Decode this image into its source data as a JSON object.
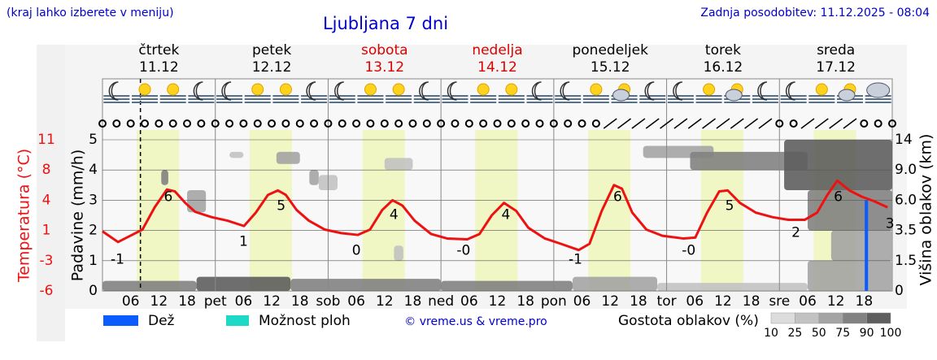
{
  "header": {
    "note": "(kraj lahko izberete v meniju)",
    "title": "Ljubljana 7 dni",
    "updated": "Zadnja posodobitev: 11.12.2025 - 08:04"
  },
  "chart_data": {
    "type": "meteogram",
    "days": [
      {
        "name": "čtrtek",
        "date": "11.12",
        "color": "#000000"
      },
      {
        "name": "petek",
        "date": "12.12",
        "color": "#000000"
      },
      {
        "name": "sobota",
        "date": "13.12",
        "color": "#dd0000"
      },
      {
        "name": "nedelja",
        "date": "14.12",
        "color": "#dd0000"
      },
      {
        "name": "ponedeljek",
        "date": "15.12",
        "color": "#000000"
      },
      {
        "name": "torek",
        "date": "16.12",
        "color": "#000000"
      },
      {
        "name": "sreda",
        "date": "17.12",
        "color": "#000000"
      }
    ],
    "xlim": [
      0,
      168
    ],
    "xticks": [
      {
        "value": 6,
        "label": "06"
      },
      12,
      18,
      {
        "value": 24,
        "label": "pet"
      },
      {
        "value": 30,
        "label": "06"
      },
      {
        "value": 36,
        "label": "12"
      },
      {
        "value": 42,
        "label": "18"
      },
      {
        "value": 48,
        "label": "sob"
      },
      {
        "value": 54,
        "label": "06"
      },
      {
        "value": 60,
        "label": "12"
      },
      {
        "value": 66,
        "label": "18"
      },
      {
        "value": 72,
        "label": "ned"
      },
      {
        "value": 78,
        "label": "06"
      },
      {
        "value": 84,
        "label": "12"
      },
      {
        "value": 90,
        "label": "18"
      },
      {
        "value": 96,
        "label": "pon"
      },
      {
        "value": 102,
        "label": "06"
      },
      {
        "value": 108,
        "label": "12"
      },
      {
        "value": 114,
        "label": "18"
      },
      {
        "value": 120,
        "label": "tor"
      },
      {
        "value": 126,
        "label": "06"
      },
      {
        "value": 132,
        "label": "12"
      },
      {
        "value": 138,
        "label": "18"
      },
      {
        "value": 144,
        "label": "sre"
      },
      {
        "value": 150,
        "label": "06"
      },
      {
        "value": 156,
        "label": "12"
      },
      {
        "value": 162,
        "label": "18"
      }
    ],
    "now": 8.07,
    "daylight": [
      [
        7.3,
        16.3
      ],
      [
        31.3,
        40.3
      ],
      [
        55.3,
        64.3
      ],
      [
        79.3,
        88.3
      ],
      [
        103.3,
        112.3
      ],
      [
        127.3,
        136.3
      ],
      [
        151.3,
        160.3
      ]
    ],
    "ylabel": "Padavine (mm/h)",
    "ylim": [
      0,
      5
    ],
    "yticks": [
      0,
      1,
      2,
      3,
      4,
      5
    ],
    "temperature": {
      "label": "Temperatura (°C)",
      "color": "#ee1111",
      "lim": [
        -6,
        11
      ],
      "ticks": [
        -6,
        {
          "value": -2.6,
          "label": "-3"
        },
        {
          "value": 0.8,
          "label": "1"
        },
        {
          "value": 4.2,
          "label": "4"
        },
        {
          "value": 7.6,
          "label": "8"
        },
        11
      ],
      "x": [
        0,
        3.3,
        5.9,
        8.5,
        11.1,
        13.7,
        15.4,
        17.6,
        19.7,
        23.2,
        26.6,
        30.1,
        32.6,
        35.2,
        37.3,
        39.0,
        41.3,
        43.9,
        47.3,
        50.8,
        54.3,
        56.9,
        59.5,
        61.7,
        63.8,
        66.4,
        69.9,
        73.3,
        77.6,
        80.2,
        82.8,
        85.4,
        88.0,
        90.6,
        94.1,
        97.5,
        101.3,
        103.6,
        106.2,
        108.8,
        110.5,
        112.7,
        115.7,
        119.1,
        123.5,
        126.1,
        128.6,
        131.2,
        133.0,
        135.6,
        139.0,
        142.5,
        145.9,
        149.4,
        152.0,
        154.2,
        156.3,
        158.9,
        161.5,
        164.1,
        167.0
      ],
      "values": [
        0.7,
        -0.5,
        0.2,
        0.9,
        3.4,
        5.4,
        5.2,
        3.9,
        2.9,
        2.3,
        1.9,
        1.3,
        2.8,
        4.8,
        5.3,
        4.8,
        3.1,
        1.9,
        0.9,
        0.5,
        0.3,
        0.9,
        3.1,
        4.2,
        3.6,
        1.9,
        0.4,
        -0.1,
        -0.2,
        0.4,
        2.5,
        3.9,
        3.0,
        1.1,
        -0.1,
        -0.7,
        -1.4,
        -0.7,
        3.0,
        5.9,
        5.5,
        2.8,
        0.9,
        0.2,
        -0.1,
        0.0,
        2.8,
        5.2,
        5.3,
        3.9,
        2.8,
        2.3,
        2.0,
        2.0,
        2.8,
        4.8,
        6.4,
        5.3,
        4.6,
        4.1,
        3.4
      ],
      "annotations": [
        {
          "x": 3.2,
          "value": -1,
          "label": "-1"
        },
        {
          "x": 14,
          "value": 6,
          "label": "6"
        },
        {
          "x": 30,
          "value": 1,
          "label": "1"
        },
        {
          "x": 38,
          "value": 5,
          "label": "5"
        },
        {
          "x": 54,
          "value": 0,
          "label": "0"
        },
        {
          "x": 62,
          "value": 4,
          "label": "4"
        },
        {
          "x": 76.8,
          "value": 0,
          "label": "-0"
        },
        {
          "x": 85.8,
          "value": 4,
          "label": "4"
        },
        {
          "x": 100.6,
          "value": -1,
          "label": "-1"
        },
        {
          "x": 109.6,
          "value": 6,
          "label": "6"
        },
        {
          "x": 124.7,
          "value": 0,
          "label": "-0"
        },
        {
          "x": 133.4,
          "value": 5,
          "label": "5"
        },
        {
          "x": 147.5,
          "value": 2,
          "label": "2"
        },
        {
          "x": 156.5,
          "value": 6,
          "label": "6"
        },
        {
          "x": 167.5,
          "value": 3,
          "label": "3"
        }
      ]
    },
    "y2label": "Višina oblakov (km)",
    "y2lim": [
      0,
      14
    ],
    "y2ticks": [
      0,
      1.5,
      3.5,
      {
        "value": 6,
        "label": "6.0"
      },
      {
        "value": 9,
        "label": "9.0"
      },
      14
    ],
    "series": [
      {
        "name": "Dež",
        "color": "#0a5cff",
        "x": [
          162.5
        ],
        "values": [
          3.0
        ]
      },
      {
        "name": "Možnost ploh",
        "color": "#1ed8c8"
      }
    ],
    "clouds": {
      "label": "Gostota oblakov (%)",
      "levels": [
        10,
        25,
        50,
        75,
        90,
        100
      ],
      "colors": [
        "#dcdcdc",
        "#c2c2c2",
        "#a4a4a4",
        "#828282",
        "#5e5e5e"
      ],
      "cells": [
        [
          0,
          20,
          0,
          0.5,
          75
        ],
        [
          20,
          40,
          0,
          0.7,
          90
        ],
        [
          40,
          72,
          0,
          0.6,
          75
        ],
        [
          72,
          100,
          0,
          0.5,
          75
        ],
        [
          100,
          118,
          0,
          0.7,
          50
        ],
        [
          118,
          150,
          0,
          0.4,
          25
        ],
        [
          150,
          168,
          0,
          1.5,
          50
        ],
        [
          12.5,
          14,
          7.5,
          9,
          75
        ],
        [
          18,
          22,
          5,
          7,
          50
        ],
        [
          27,
          30,
          11,
          12,
          25
        ],
        [
          37,
          42,
          10,
          12,
          50
        ],
        [
          44,
          46,
          7.5,
          9,
          50
        ],
        [
          46,
          50,
          7,
          8.5,
          25
        ],
        [
          60,
          66,
          9,
          11,
          25
        ],
        [
          62,
          64,
          1.5,
          2.5,
          25
        ],
        [
          115,
          130,
          11,
          13,
          50
        ],
        [
          125,
          150,
          9,
          12,
          75
        ],
        [
          145,
          168,
          7,
          14,
          90
        ],
        [
          150,
          168,
          3.5,
          7,
          75
        ],
        [
          155,
          168,
          1.5,
          3.5,
          50
        ]
      ]
    },
    "credit": "© vreme.us & vreme.pro"
  }
}
